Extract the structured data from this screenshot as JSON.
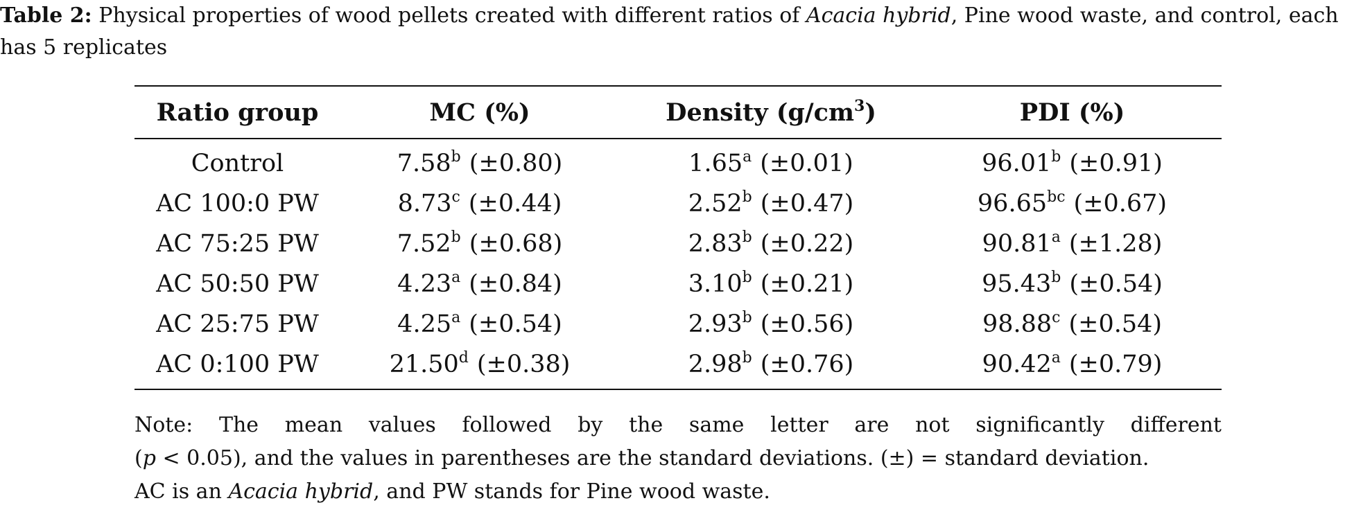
{
  "caption": {
    "label": "Table 2:",
    "text_before_italic": "Physical properties of wood pellets created with different ratios of",
    "italic": "Acacia hybrid",
    "text_after_italic": ", Pine wood waste, and control, each has 5 replicates"
  },
  "table": {
    "headers": {
      "ratio_group": "Ratio group",
      "mc": "MC (%)",
      "density_prefix": "Density (g/cm",
      "density_sup": "3",
      "density_suffix": ")",
      "pdi": "PDI (%)"
    },
    "rows": [
      {
        "group": "Control",
        "mc": "7.58",
        "mc_sup": "b",
        "mc_sd": "(±0.80)",
        "density": "1.65",
        "density_sup": "a",
        "density_sd": "(±0.01)",
        "pdi": "96.01",
        "pdi_sup": "b",
        "pdi_sd": "(±0.91)"
      },
      {
        "group": "AC 100:0 PW",
        "mc": "8.73",
        "mc_sup": "c",
        "mc_sd": "(±0.44)",
        "density": "2.52",
        "density_sup": "b",
        "density_sd": "(±0.47)",
        "pdi": "96.65",
        "pdi_sup": "bc",
        "pdi_sd": "(±0.67)"
      },
      {
        "group": "AC 75:25 PW",
        "mc": "7.52",
        "mc_sup": "b",
        "mc_sd": "(±0.68)",
        "density": "2.83",
        "density_sup": "b",
        "density_sd": "(±0.22)",
        "pdi": "90.81",
        "pdi_sup": "a",
        "pdi_sd": "(±1.28)"
      },
      {
        "group": "AC 50:50 PW",
        "mc": "4.23",
        "mc_sup": "a",
        "mc_sd": "(±0.84)",
        "density": "3.10",
        "density_sup": "b",
        "density_sd": "(±0.21)",
        "pdi": "95.43",
        "pdi_sup": "b",
        "pdi_sd": "(±0.54)"
      },
      {
        "group": "AC 25:75 PW",
        "mc": "4.25",
        "mc_sup": "a",
        "mc_sd": "(±0.54)",
        "density": "2.93",
        "density_sup": "b",
        "density_sd": "(±0.56)",
        "pdi": "98.88",
        "pdi_sup": "c",
        "pdi_sd": "(±0.54)"
      },
      {
        "group": "AC 0:100 PW",
        "mc": "21.50",
        "mc_sup": "d",
        "mc_sd": "(±0.38)",
        "density": "2.98",
        "density_sup": "b",
        "density_sd": "(±0.76)",
        "pdi": "90.42",
        "pdi_sup": "a",
        "pdi_sd": "(±0.79)"
      }
    ]
  },
  "note": {
    "line1": "Note: The mean values followed by the same letter are not significantly different",
    "p_open": "(",
    "p_italic": "p",
    "p_rest": " < 0.05), and the values in parentheses are the standard deviations. (±) = standard deviation.",
    "ac_prefix": "AC is an ",
    "ac_italic": "Acacia hybrid",
    "ac_suffix": ", and PW stands for Pine wood waste."
  }
}
